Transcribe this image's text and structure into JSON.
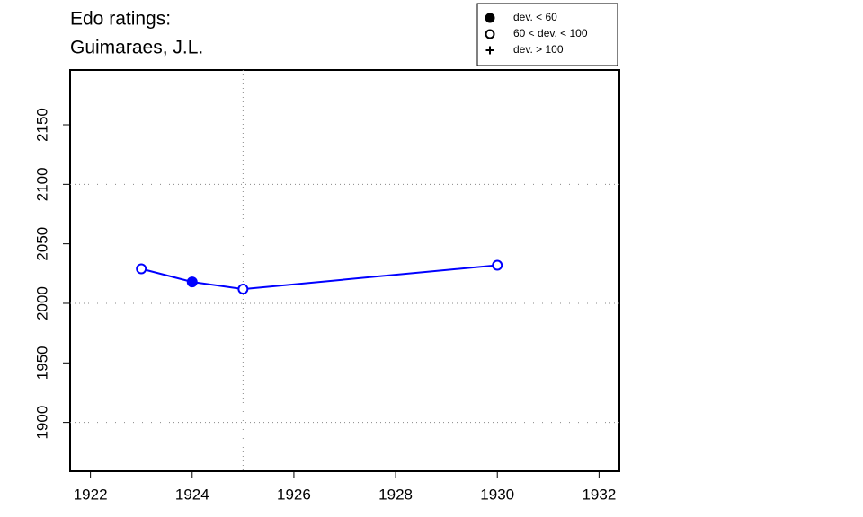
{
  "chart_data": {
    "type": "line",
    "title": [
      "Edo ratings:",
      "Guimaraes, J.L."
    ],
    "x": [
      1923,
      1924,
      1925,
      1930
    ],
    "series": [
      {
        "color": "#0000ff",
        "values": [
          2029,
          2018,
          2012,
          2032
        ],
        "point_styles": [
          "open",
          "filled",
          "open",
          "open"
        ]
      }
    ],
    "xlim": [
      1921.6,
      1932.4
    ],
    "xticks": [
      1922,
      1924,
      1926,
      1928,
      1930,
      1932
    ],
    "ylim": [
      1859,
      2196
    ],
    "yticks": [
      1900,
      1950,
      2000,
      2050,
      2100,
      2150
    ],
    "hgrid": [
      1900,
      2000,
      2100
    ],
    "vgrid": [
      1925
    ],
    "legend_position": "top-right",
    "legend": [
      {
        "label": "dev. < 60",
        "symbol": "filled"
      },
      {
        "label": "60 < dev. < 100",
        "symbol": "open"
      },
      {
        "label": "dev. > 100",
        "symbol": "plus"
      }
    ]
  }
}
